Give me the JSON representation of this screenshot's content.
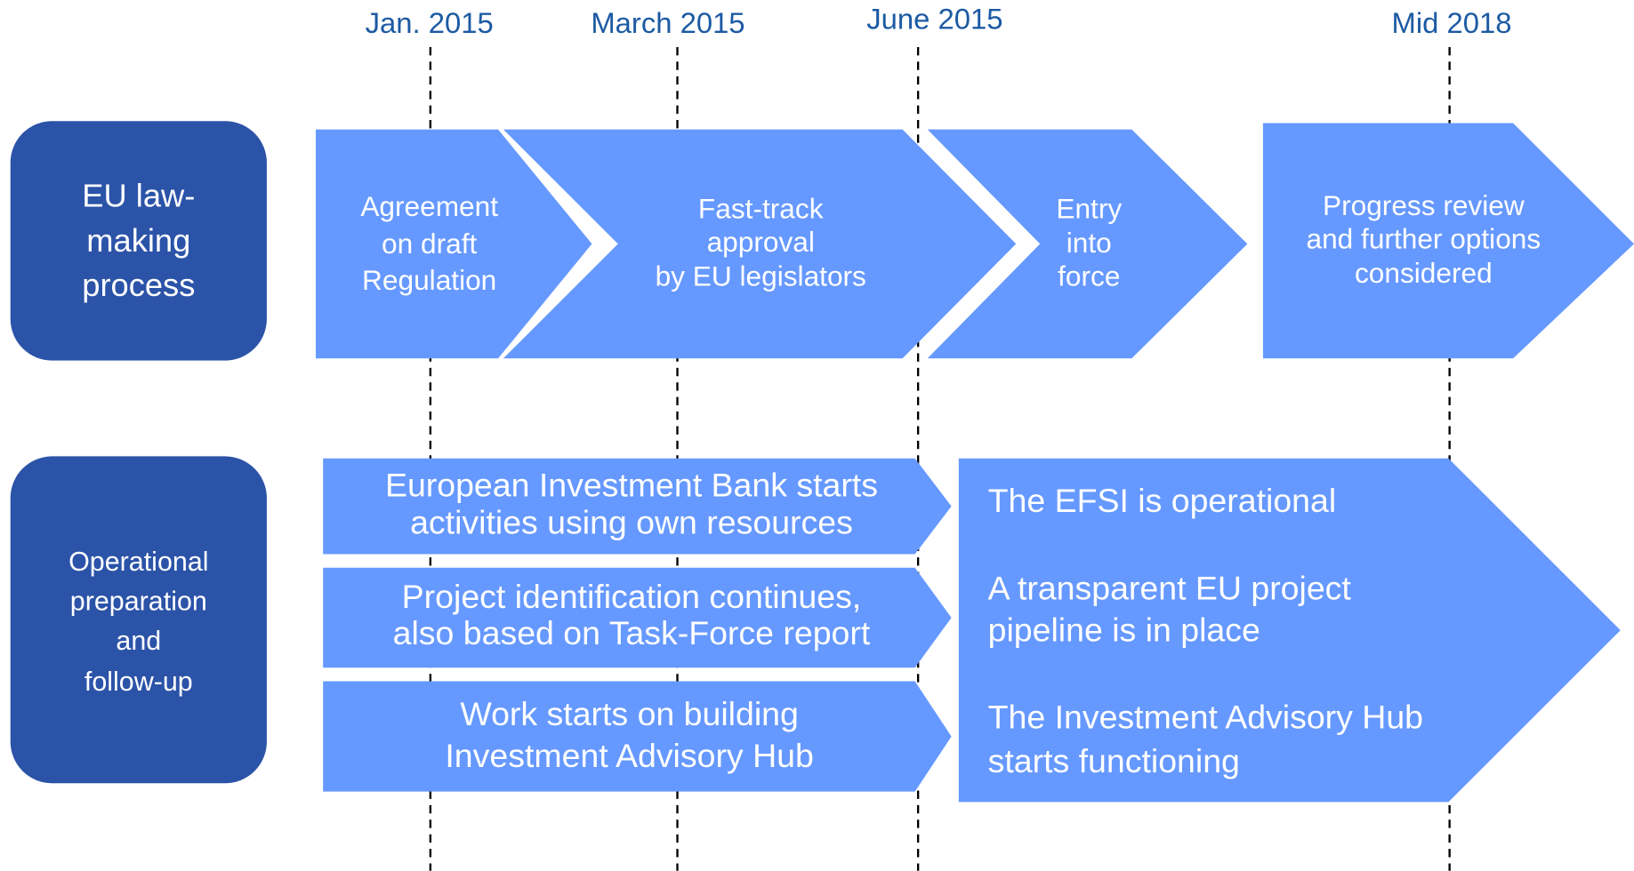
{
  "dates": [
    "Jan. 2015",
    "March 2015",
    "June 2015",
    "Mid 2018"
  ],
  "lanes": [
    {
      "label": [
        "EU law-",
        "making",
        "process"
      ],
      "steps": [
        [
          "Agreement",
          "on draft",
          "Regulation"
        ],
        [
          "Fast-track",
          "approval",
          "by EU legislators"
        ],
        [
          "Entry",
          "into",
          "force"
        ],
        [
          "Progress review",
          "and further options",
          "considered"
        ]
      ]
    },
    {
      "label": [
        "Operational",
        "preparation",
        "and",
        "follow-up"
      ],
      "activities": [
        [
          "European Investment Bank starts",
          "activities using own resources"
        ],
        [
          "Project identification continues,",
          "also based on Task-Force report"
        ],
        [
          "Work starts on building",
          "Investment Advisory Hub"
        ]
      ],
      "results": [
        [
          "The EFSI is operational"
        ],
        [
          "A transparent EU project",
          "pipeline is in place"
        ],
        [
          "The Investment Advisory Hub",
          "starts functioning"
        ]
      ]
    }
  ]
}
